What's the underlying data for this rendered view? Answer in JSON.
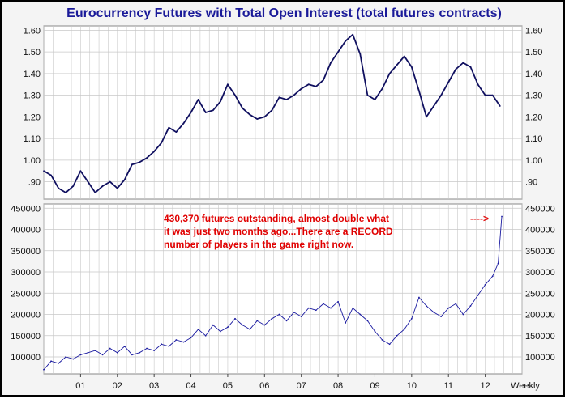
{
  "title": "Eurocurrency Futures with Total Open Interest (total futures contracts)",
  "annotation": {
    "lines": [
      "430,370 futures outstanding, almost double what",
      "it was just two months ago...There are a RECORD",
      "number of players in the game right now."
    ],
    "arrow": "---->",
    "color": "#e00000"
  },
  "colors": {
    "line": "#101060",
    "oi_line": "#1a1aa0",
    "grid": "#c8c8c8",
    "title": "#1a1a99"
  },
  "chart_data": [
    {
      "type": "line",
      "name": "price",
      "ylim": [
        0.82,
        1.62
      ],
      "yticks": [
        0.9,
        1.0,
        1.1,
        1.2,
        1.3,
        1.4,
        1.5,
        1.6
      ],
      "ytick_labels": [
        ".90",
        "1.00",
        "1.10",
        "1.20",
        "1.30",
        "1.40",
        "1.50",
        "1.60"
      ],
      "x": [
        2000.0,
        2000.2,
        2000.4,
        2000.6,
        2000.8,
        2001.0,
        2001.2,
        2001.4,
        2001.6,
        2001.8,
        2002.0,
        2002.2,
        2002.4,
        2002.6,
        2002.8,
        2003.0,
        2003.2,
        2003.4,
        2003.6,
        2003.8,
        2004.0,
        2004.2,
        2004.4,
        2004.6,
        2004.8,
        2005.0,
        2005.2,
        2005.4,
        2005.6,
        2005.8,
        2006.0,
        2006.2,
        2006.4,
        2006.6,
        2006.8,
        2007.0,
        2007.2,
        2007.4,
        2007.6,
        2007.8,
        2008.0,
        2008.2,
        2008.4,
        2008.6,
        2008.8,
        2009.0,
        2009.2,
        2009.4,
        2009.6,
        2009.8,
        2010.0,
        2010.2,
        2010.4,
        2010.6,
        2010.8,
        2011.0,
        2011.2,
        2011.4,
        2011.6,
        2011.8,
        2012.0,
        2012.2,
        2012.4
      ],
      "values": [
        0.95,
        0.93,
        0.87,
        0.85,
        0.88,
        0.95,
        0.9,
        0.85,
        0.88,
        0.9,
        0.87,
        0.91,
        0.98,
        0.99,
        1.01,
        1.04,
        1.08,
        1.15,
        1.13,
        1.17,
        1.22,
        1.28,
        1.22,
        1.23,
        1.27,
        1.35,
        1.3,
        1.24,
        1.21,
        1.19,
        1.2,
        1.23,
        1.29,
        1.28,
        1.3,
        1.33,
        1.35,
        1.34,
        1.37,
        1.45,
        1.5,
        1.55,
        1.58,
        1.49,
        1.3,
        1.28,
        1.33,
        1.4,
        1.44,
        1.48,
        1.43,
        1.32,
        1.2,
        1.25,
        1.3,
        1.36,
        1.42,
        1.45,
        1.43,
        1.35,
        1.3,
        1.3,
        1.25
      ]
    },
    {
      "type": "line",
      "name": "open interest",
      "ylim": [
        60000,
        460000
      ],
      "yticks": [
        100000,
        150000,
        200000,
        250000,
        300000,
        350000,
        400000,
        450000
      ],
      "ytick_labels": [
        "100000",
        "150000",
        "200000",
        "250000",
        "300000",
        "350000",
        "400000",
        "450000"
      ],
      "x": [
        2000.0,
        2000.2,
        2000.4,
        2000.6,
        2000.8,
        2001.0,
        2001.2,
        2001.4,
        2001.6,
        2001.8,
        2002.0,
        2002.2,
        2002.4,
        2002.6,
        2002.8,
        2003.0,
        2003.2,
        2003.4,
        2003.6,
        2003.8,
        2004.0,
        2004.2,
        2004.4,
        2004.6,
        2004.8,
        2005.0,
        2005.2,
        2005.4,
        2005.6,
        2005.8,
        2006.0,
        2006.2,
        2006.4,
        2006.6,
        2006.8,
        2007.0,
        2007.2,
        2007.4,
        2007.6,
        2007.8,
        2008.0,
        2008.2,
        2008.4,
        2008.6,
        2008.8,
        2009.0,
        2009.2,
        2009.4,
        2009.6,
        2009.8,
        2010.0,
        2010.2,
        2010.4,
        2010.6,
        2010.8,
        2011.0,
        2011.2,
        2011.4,
        2011.6,
        2011.8,
        2012.0,
        2012.2,
        2012.35,
        2012.45
      ],
      "values": [
        70000,
        90000,
        85000,
        100000,
        95000,
        105000,
        110000,
        115000,
        105000,
        120000,
        110000,
        125000,
        105000,
        110000,
        120000,
        115000,
        130000,
        125000,
        140000,
        135000,
        145000,
        165000,
        150000,
        175000,
        160000,
        170000,
        190000,
        175000,
        165000,
        185000,
        175000,
        190000,
        200000,
        185000,
        205000,
        195000,
        215000,
        210000,
        225000,
        215000,
        230000,
        180000,
        215000,
        200000,
        185000,
        160000,
        140000,
        130000,
        150000,
        165000,
        190000,
        240000,
        220000,
        205000,
        195000,
        215000,
        225000,
        200000,
        220000,
        245000,
        270000,
        290000,
        320000,
        430370
      ]
    }
  ],
  "x_axis": {
    "ticks": [
      2001,
      2002,
      2003,
      2004,
      2005,
      2006,
      2007,
      2008,
      2009,
      2010,
      2011,
      2012
    ],
    "labels": [
      "01",
      "02",
      "03",
      "04",
      "05",
      "06",
      "07",
      "08",
      "09",
      "10",
      "11",
      "12"
    ],
    "range": [
      2000.0,
      2013.0
    ],
    "frequency": "Weekly"
  }
}
